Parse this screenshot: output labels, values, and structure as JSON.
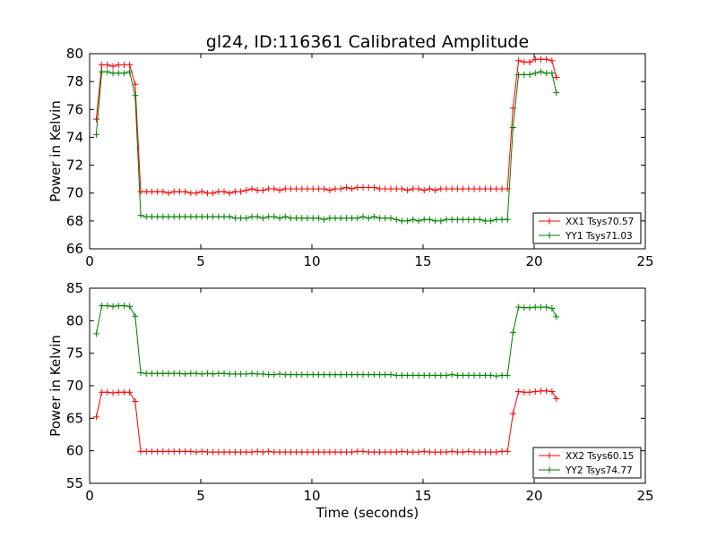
{
  "title": "gl24, ID:116361 Calibrated Amplitude",
  "chart_data": [
    {
      "type": "line",
      "title": "gl24, ID:116361 Calibrated Amplitude",
      "xlabel": "",
      "ylabel": "Power in Kelvin",
      "xlim": [
        0,
        25
      ],
      "ylim": [
        66,
        80
      ],
      "xticks": [
        0,
        5,
        10,
        15,
        20,
        25
      ],
      "yticks": [
        66,
        68,
        70,
        72,
        74,
        76,
        78,
        80
      ],
      "grid": false,
      "legend_position": "lower-right",
      "series": [
        {
          "name": "XX1 Tsys70.57",
          "color": "#ff0000",
          "x": [
            0.3,
            0.55,
            0.8,
            1.05,
            1.3,
            1.55,
            1.8,
            2.05,
            2.3,
            2.55,
            2.8,
            3.05,
            3.3,
            3.55,
            3.8,
            4.05,
            4.3,
            4.55,
            4.8,
            5.05,
            5.3,
            5.55,
            5.8,
            6.05,
            6.3,
            6.55,
            6.8,
            7.05,
            7.3,
            7.55,
            7.8,
            8.05,
            8.3,
            8.55,
            8.8,
            9.05,
            9.3,
            9.55,
            9.8,
            10.05,
            10.3,
            10.55,
            10.8,
            11.05,
            11.3,
            11.55,
            11.8,
            12.05,
            12.3,
            12.55,
            12.8,
            13.05,
            13.3,
            13.55,
            13.8,
            14.05,
            14.3,
            14.55,
            14.8,
            15.05,
            15.3,
            15.55,
            15.8,
            16.05,
            16.3,
            16.55,
            16.8,
            17.05,
            17.3,
            17.55,
            17.8,
            18.05,
            18.3,
            18.55,
            18.8,
            19.05,
            19.3,
            19.55,
            19.8,
            20.05,
            20.3,
            20.55,
            20.8,
            21.0
          ],
          "values": [
            75.3,
            79.2,
            79.2,
            79.1,
            79.2,
            79.2,
            79.2,
            77.8,
            70.1,
            70.1,
            70.1,
            70.1,
            70.1,
            70.0,
            70.1,
            70.1,
            70.1,
            70.0,
            70.0,
            70.1,
            70.0,
            70.0,
            70.1,
            70.1,
            70.0,
            70.1,
            70.1,
            70.2,
            70.3,
            70.2,
            70.2,
            70.3,
            70.3,
            70.2,
            70.3,
            70.3,
            70.3,
            70.3,
            70.3,
            70.3,
            70.3,
            70.3,
            70.2,
            70.3,
            70.3,
            70.4,
            70.3,
            70.4,
            70.4,
            70.4,
            70.4,
            70.3,
            70.3,
            70.3,
            70.3,
            70.3,
            70.2,
            70.3,
            70.3,
            70.2,
            70.3,
            70.2,
            70.3,
            70.3,
            70.3,
            70.3,
            70.3,
            70.3,
            70.3,
            70.3,
            70.3,
            70.3,
            70.3,
            70.3,
            70.3,
            76.1,
            79.5,
            79.4,
            79.4,
            79.6,
            79.6,
            79.6,
            79.5,
            78.3
          ]
        },
        {
          "name": "YY1 Tsys71.03",
          "color": "#008000",
          "x": [
            0.3,
            0.55,
            0.8,
            1.05,
            1.3,
            1.55,
            1.8,
            2.05,
            2.3,
            2.55,
            2.8,
            3.05,
            3.3,
            3.55,
            3.8,
            4.05,
            4.3,
            4.55,
            4.8,
            5.05,
            5.3,
            5.55,
            5.8,
            6.05,
            6.3,
            6.55,
            6.8,
            7.05,
            7.3,
            7.55,
            7.8,
            8.05,
            8.3,
            8.55,
            8.8,
            9.05,
            9.3,
            9.55,
            9.8,
            10.05,
            10.3,
            10.55,
            10.8,
            11.05,
            11.3,
            11.55,
            11.8,
            12.05,
            12.3,
            12.55,
            12.8,
            13.05,
            13.3,
            13.55,
            13.8,
            14.05,
            14.3,
            14.55,
            14.8,
            15.05,
            15.3,
            15.55,
            15.8,
            16.05,
            16.3,
            16.55,
            16.8,
            17.05,
            17.3,
            17.55,
            17.8,
            18.05,
            18.3,
            18.55,
            18.8,
            19.05,
            19.3,
            19.55,
            19.8,
            20.05,
            20.3,
            20.55,
            20.8,
            21.0
          ],
          "values": [
            74.2,
            78.7,
            78.7,
            78.6,
            78.6,
            78.6,
            78.7,
            77.0,
            68.4,
            68.3,
            68.3,
            68.3,
            68.3,
            68.3,
            68.3,
            68.3,
            68.3,
            68.3,
            68.3,
            68.3,
            68.3,
            68.3,
            68.3,
            68.3,
            68.3,
            68.2,
            68.2,
            68.2,
            68.3,
            68.3,
            68.2,
            68.3,
            68.3,
            68.2,
            68.3,
            68.2,
            68.2,
            68.2,
            68.2,
            68.2,
            68.2,
            68.1,
            68.2,
            68.2,
            68.2,
            68.2,
            68.2,
            68.2,
            68.3,
            68.2,
            68.3,
            68.2,
            68.2,
            68.2,
            68.1,
            68.0,
            68.0,
            68.1,
            68.0,
            68.1,
            68.1,
            68.0,
            68.0,
            68.1,
            68.1,
            68.1,
            68.1,
            68.1,
            68.1,
            68.1,
            68.0,
            68.0,
            68.1,
            68.1,
            68.1,
            74.7,
            78.5,
            78.5,
            78.5,
            78.6,
            78.7,
            78.6,
            78.6,
            77.2
          ]
        }
      ]
    },
    {
      "type": "line",
      "title": "",
      "xlabel": "Time (seconds)",
      "ylabel": "Power in Kelvin",
      "xlim": [
        0,
        25
      ],
      "ylim": [
        55,
        85
      ],
      "xticks": [
        0,
        5,
        10,
        15,
        20,
        25
      ],
      "yticks": [
        55,
        60,
        65,
        70,
        75,
        80,
        85
      ],
      "grid": false,
      "legend_position": "lower-right",
      "series": [
        {
          "name": "XX2 Tsys60.15",
          "color": "#ff0000",
          "x": [
            0.3,
            0.55,
            0.8,
            1.05,
            1.3,
            1.55,
            1.8,
            2.05,
            2.3,
            2.55,
            2.8,
            3.05,
            3.3,
            3.55,
            3.8,
            4.05,
            4.3,
            4.55,
            4.8,
            5.05,
            5.3,
            5.55,
            5.8,
            6.05,
            6.3,
            6.55,
            6.8,
            7.05,
            7.3,
            7.55,
            7.8,
            8.05,
            8.3,
            8.55,
            8.8,
            9.05,
            9.3,
            9.55,
            9.8,
            10.05,
            10.3,
            10.55,
            10.8,
            11.05,
            11.3,
            11.55,
            11.8,
            12.05,
            12.3,
            12.55,
            12.8,
            13.05,
            13.3,
            13.55,
            13.8,
            14.05,
            14.3,
            14.55,
            14.8,
            15.05,
            15.3,
            15.55,
            15.8,
            16.05,
            16.3,
            16.55,
            16.8,
            17.05,
            17.3,
            17.55,
            17.8,
            18.05,
            18.3,
            18.55,
            18.8,
            19.05,
            19.3,
            19.55,
            19.8,
            20.05,
            20.3,
            20.55,
            20.8,
            21.0
          ],
          "values": [
            65.2,
            69.0,
            69.0,
            68.9,
            69.0,
            69.0,
            69.0,
            67.6,
            59.9,
            59.9,
            59.9,
            59.9,
            59.9,
            59.9,
            59.9,
            59.9,
            59.9,
            59.9,
            59.8,
            59.9,
            59.8,
            59.8,
            59.8,
            59.8,
            59.8,
            59.8,
            59.8,
            59.8,
            59.8,
            59.9,
            59.8,
            59.9,
            59.8,
            59.8,
            59.8,
            59.8,
            59.8,
            59.8,
            59.8,
            59.8,
            59.8,
            59.8,
            59.8,
            59.8,
            59.8,
            59.8,
            59.8,
            59.9,
            59.9,
            59.8,
            59.8,
            59.8,
            59.8,
            59.8,
            59.8,
            59.9,
            59.8,
            59.8,
            59.8,
            59.9,
            59.8,
            59.8,
            59.8,
            59.8,
            59.9,
            59.8,
            59.8,
            59.9,
            59.8,
            59.8,
            59.8,
            59.8,
            59.8,
            59.9,
            59.9,
            65.7,
            69.1,
            69.0,
            69.0,
            69.1,
            69.2,
            69.2,
            69.1,
            68.0
          ]
        },
        {
          "name": "YY2 Tsys74.77",
          "color": "#008000",
          "x": [
            0.3,
            0.55,
            0.8,
            1.05,
            1.3,
            1.55,
            1.8,
            2.05,
            2.3,
            2.55,
            2.8,
            3.05,
            3.3,
            3.55,
            3.8,
            4.05,
            4.3,
            4.55,
            4.8,
            5.05,
            5.3,
            5.55,
            5.8,
            6.05,
            6.3,
            6.55,
            6.8,
            7.05,
            7.3,
            7.55,
            7.8,
            8.05,
            8.3,
            8.55,
            8.8,
            9.05,
            9.3,
            9.55,
            9.8,
            10.05,
            10.3,
            10.55,
            10.8,
            11.05,
            11.3,
            11.55,
            11.8,
            12.05,
            12.3,
            12.55,
            12.8,
            13.05,
            13.3,
            13.55,
            13.8,
            14.05,
            14.3,
            14.55,
            14.8,
            15.05,
            15.3,
            15.55,
            15.8,
            16.05,
            16.3,
            16.55,
            16.8,
            17.05,
            17.3,
            17.55,
            17.8,
            18.05,
            18.3,
            18.55,
            18.8,
            19.05,
            19.3,
            19.55,
            19.8,
            20.05,
            20.3,
            20.55,
            20.8,
            21.0
          ],
          "values": [
            78.0,
            82.3,
            82.3,
            82.2,
            82.3,
            82.3,
            82.2,
            80.7,
            72.0,
            71.9,
            71.9,
            71.9,
            71.9,
            71.9,
            71.9,
            71.9,
            71.8,
            71.9,
            71.9,
            71.8,
            71.9,
            71.8,
            71.9,
            71.9,
            71.8,
            71.8,
            71.8,
            71.8,
            71.9,
            71.8,
            71.8,
            71.7,
            71.7,
            71.8,
            71.7,
            71.7,
            71.7,
            71.7,
            71.7,
            71.7,
            71.7,
            71.7,
            71.7,
            71.7,
            71.7,
            71.7,
            71.7,
            71.7,
            71.7,
            71.7,
            71.7,
            71.7,
            71.7,
            71.7,
            71.6,
            71.6,
            71.6,
            71.6,
            71.6,
            71.6,
            71.6,
            71.6,
            71.6,
            71.6,
            71.7,
            71.6,
            71.6,
            71.6,
            71.6,
            71.6,
            71.6,
            71.6,
            71.5,
            71.6,
            71.6,
            78.2,
            82.1,
            82.0,
            82.0,
            82.1,
            82.1,
            82.1,
            81.9,
            80.6
          ]
        }
      ]
    }
  ]
}
